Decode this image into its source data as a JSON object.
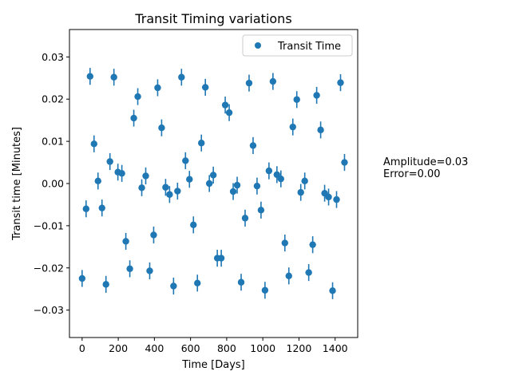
{
  "chart_data": {
    "type": "scatter",
    "title": "Transit Timing variations",
    "xlabel": "Time [Days]",
    "ylabel": "Transit time [Minutes]",
    "xlim": [
      -70,
      1525
    ],
    "ylim": [
      -0.0365,
      0.0365
    ],
    "xticks": [
      0,
      200,
      400,
      600,
      800,
      1000,
      1200,
      1400
    ],
    "yticks": [
      -0.03,
      -0.02,
      -0.01,
      0.0,
      0.01,
      0.02,
      0.03
    ],
    "ytick_labels": [
      "−0.03",
      "−0.02",
      "−0.01",
      "0.00",
      "0.01",
      "0.02",
      "0.03"
    ],
    "grid": false,
    "legend_position": "top-right",
    "error_bar": 0.002,
    "marker_color": "#1f77b4",
    "series": [
      {
        "name": "Transit Time",
        "x": [
          0,
          22,
          44,
          66,
          88,
          110,
          132,
          154,
          176,
          198,
          220,
          242,
          264,
          286,
          308,
          330,
          352,
          374,
          396,
          418,
          440,
          462,
          484,
          506,
          528,
          550,
          572,
          594,
          616,
          638,
          660,
          682,
          704,
          726,
          748,
          770,
          792,
          814,
          836,
          858,
          880,
          902,
          924,
          946,
          968,
          990,
          1012,
          1034,
          1056,
          1078,
          1100,
          1122,
          1144,
          1166,
          1188,
          1210,
          1232,
          1254,
          1276,
          1298,
          1320,
          1342,
          1364,
          1386,
          1408,
          1430,
          1452
        ],
        "y": [
          -0.0225,
          -0.006,
          0.0254,
          0.0094,
          0.0006,
          -0.0058,
          -0.0239,
          0.0052,
          0.0252,
          0.0027,
          0.0024,
          -0.0137,
          -0.0202,
          0.0155,
          0.0206,
          -0.001,
          0.0018,
          -0.0207,
          -0.0122,
          0.0227,
          0.0132,
          -0.0009,
          -0.0026,
          -0.0243,
          -0.0018,
          0.0252,
          0.0054,
          0.001,
          -0.0098,
          -0.0236,
          0.0096,
          0.0228,
          0.0,
          0.002,
          -0.0177,
          -0.0177,
          0.0186,
          0.0168,
          -0.0019,
          -0.0004,
          -0.0234,
          -0.0082,
          0.0238,
          0.009,
          -0.0006,
          -0.0063,
          -0.0253,
          0.003,
          0.0242,
          0.0021,
          0.0011,
          -0.0141,
          -0.0219,
          0.0134,
          0.0199,
          -0.0021,
          0.0006,
          -0.0211,
          -0.0145,
          0.0209,
          0.0127,
          -0.0023,
          -0.0032,
          -0.0254,
          -0.0038,
          0.0239,
          0.005
        ]
      }
    ]
  },
  "annotation": {
    "amplitude": "Amplitude=0.03",
    "error": "Error=0.00"
  }
}
